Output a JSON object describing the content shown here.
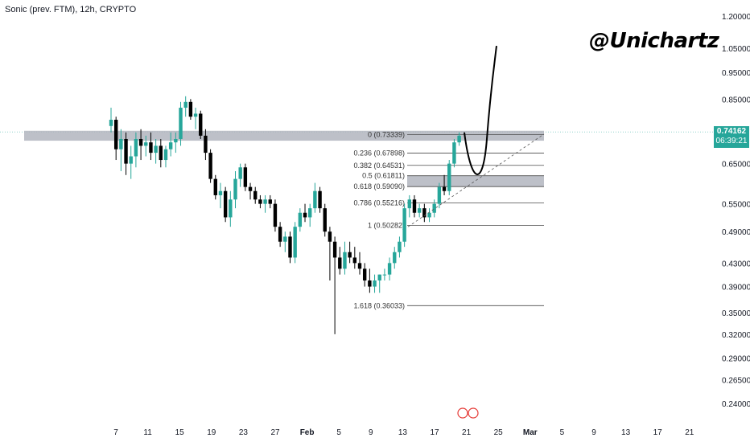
{
  "header": {
    "symbol_line": "Sonic (prev. FTM), 12h, CRYPTO"
  },
  "watermark": "@Unichartz",
  "price_badge": {
    "price": "0.74162",
    "countdown": "06:39:21"
  },
  "colors": {
    "up": "#26a69a",
    "down": "#000000",
    "zone": "#b2b5be",
    "fib": "#4a4a4a",
    "badge": "#26a69a"
  },
  "chart_data": {
    "type": "candlestick",
    "x_ticks": [
      "7",
      "11",
      "15",
      "19",
      "23",
      "27",
      "Feb",
      "5",
      "9",
      "13",
      "17",
      "21",
      "25",
      "Mar",
      "5",
      "9",
      "13",
      "17",
      "21"
    ],
    "y_ticks": [
      "1.20000",
      "1.05000",
      "0.95000",
      "0.85000",
      "0.65000",
      "0.55000",
      "0.49000",
      "0.43000",
      "0.39000",
      "0.35000",
      "0.32000",
      "0.29000",
      "0.26500",
      "0.24000"
    ],
    "y_scale": "log",
    "current_price": 0.74162,
    "fib_levels": [
      {
        "label": "0 (0.73339)",
        "value": 0.73339
      },
      {
        "label": "0.236 (0.67898)",
        "value": 0.67898
      },
      {
        "label": "0.382 (0.64531)",
        "value": 0.64531
      },
      {
        "label": "0.5 (0.61811)",
        "value": 0.61811
      },
      {
        "label": "0.618 (0.59090)",
        "value": 0.5909
      },
      {
        "label": "0.786 (0.55216)",
        "value": 0.55216
      },
      {
        "label": "1 (0.50282)",
        "value": 0.50282
      },
      {
        "label": "1.618 (0.36033)",
        "value": 0.36033
      }
    ],
    "zones": [
      {
        "low": 0.715,
        "high": 0.745
      },
      {
        "low": 0.5909,
        "high": 0.6181
      }
    ],
    "candles": [
      [
        0.76,
        0.82,
        0.74,
        0.78
      ],
      [
        0.78,
        0.79,
        0.66,
        0.69
      ],
      [
        0.69,
        0.75,
        0.63,
        0.72
      ],
      [
        0.72,
        0.74,
        0.62,
        0.65
      ],
      [
        0.65,
        0.7,
        0.61,
        0.67
      ],
      [
        0.67,
        0.74,
        0.64,
        0.72
      ],
      [
        0.72,
        0.75,
        0.66,
        0.7
      ],
      [
        0.7,
        0.73,
        0.67,
        0.71
      ],
      [
        0.71,
        0.74,
        0.66,
        0.68
      ],
      [
        0.68,
        0.72,
        0.65,
        0.7
      ],
      [
        0.7,
        0.72,
        0.64,
        0.66
      ],
      [
        0.66,
        0.7,
        0.64,
        0.69
      ],
      [
        0.69,
        0.74,
        0.67,
        0.71
      ],
      [
        0.71,
        0.74,
        0.68,
        0.72
      ],
      [
        0.72,
        0.84,
        0.7,
        0.82
      ],
      [
        0.82,
        0.86,
        0.79,
        0.84
      ],
      [
        0.84,
        0.85,
        0.78,
        0.79
      ],
      [
        0.79,
        0.82,
        0.75,
        0.8
      ],
      [
        0.8,
        0.81,
        0.72,
        0.73
      ],
      [
        0.73,
        0.75,
        0.66,
        0.68
      ],
      [
        0.68,
        0.69,
        0.6,
        0.61
      ],
      [
        0.61,
        0.62,
        0.56,
        0.57
      ],
      [
        0.57,
        0.6,
        0.54,
        0.58
      ],
      [
        0.58,
        0.59,
        0.51,
        0.52
      ],
      [
        0.52,
        0.58,
        0.5,
        0.56
      ],
      [
        0.56,
        0.63,
        0.54,
        0.61
      ],
      [
        0.61,
        0.65,
        0.59,
        0.64
      ],
      [
        0.64,
        0.65,
        0.58,
        0.59
      ],
      [
        0.59,
        0.6,
        0.56,
        0.58
      ],
      [
        0.58,
        0.59,
        0.55,
        0.56
      ],
      [
        0.56,
        0.57,
        0.54,
        0.55
      ],
      [
        0.55,
        0.57,
        0.53,
        0.56
      ],
      [
        0.56,
        0.57,
        0.54,
        0.55
      ],
      [
        0.55,
        0.56,
        0.49,
        0.5
      ],
      [
        0.5,
        0.51,
        0.46,
        0.47
      ],
      [
        0.47,
        0.49,
        0.45,
        0.48
      ],
      [
        0.48,
        0.49,
        0.43,
        0.44
      ],
      [
        0.44,
        0.51,
        0.43,
        0.5
      ],
      [
        0.5,
        0.54,
        0.49,
        0.53
      ],
      [
        0.53,
        0.55,
        0.51,
        0.52
      ],
      [
        0.52,
        0.55,
        0.5,
        0.54
      ],
      [
        0.54,
        0.6,
        0.53,
        0.58
      ],
      [
        0.58,
        0.59,
        0.53,
        0.54
      ],
      [
        0.54,
        0.55,
        0.48,
        0.49
      ],
      [
        0.49,
        0.5,
        0.4,
        0.47
      ],
      [
        0.47,
        0.48,
        0.32,
        0.44
      ],
      [
        0.44,
        0.46,
        0.41,
        0.42
      ],
      [
        0.42,
        0.47,
        0.41,
        0.45
      ],
      [
        0.45,
        0.47,
        0.43,
        0.44
      ],
      [
        0.44,
        0.46,
        0.42,
        0.43
      ],
      [
        0.43,
        0.45,
        0.41,
        0.42
      ],
      [
        0.42,
        0.43,
        0.39,
        0.4
      ],
      [
        0.4,
        0.42,
        0.38,
        0.39
      ],
      [
        0.39,
        0.41,
        0.38,
        0.4
      ],
      [
        0.4,
        0.41,
        0.38,
        0.41
      ],
      [
        0.41,
        0.42,
        0.4,
        0.41
      ],
      [
        0.41,
        0.44,
        0.4,
        0.43
      ],
      [
        0.43,
        0.46,
        0.42,
        0.45
      ],
      [
        0.45,
        0.48,
        0.44,
        0.47
      ],
      [
        0.47,
        0.55,
        0.46,
        0.54
      ],
      [
        0.54,
        0.57,
        0.52,
        0.56
      ],
      [
        0.56,
        0.57,
        0.52,
        0.53
      ],
      [
        0.53,
        0.55,
        0.52,
        0.54
      ],
      [
        0.54,
        0.55,
        0.51,
        0.52
      ],
      [
        0.52,
        0.54,
        0.51,
        0.53
      ],
      [
        0.53,
        0.56,
        0.52,
        0.55
      ],
      [
        0.55,
        0.6,
        0.54,
        0.59
      ],
      [
        0.59,
        0.62,
        0.57,
        0.58
      ],
      [
        0.58,
        0.66,
        0.57,
        0.65
      ],
      [
        0.65,
        0.72,
        0.64,
        0.71
      ],
      [
        0.71,
        0.74,
        0.7,
        0.73
      ]
    ],
    "projection": "dashed trendline support with curved path rising from ~0.6 toward 1.05"
  }
}
